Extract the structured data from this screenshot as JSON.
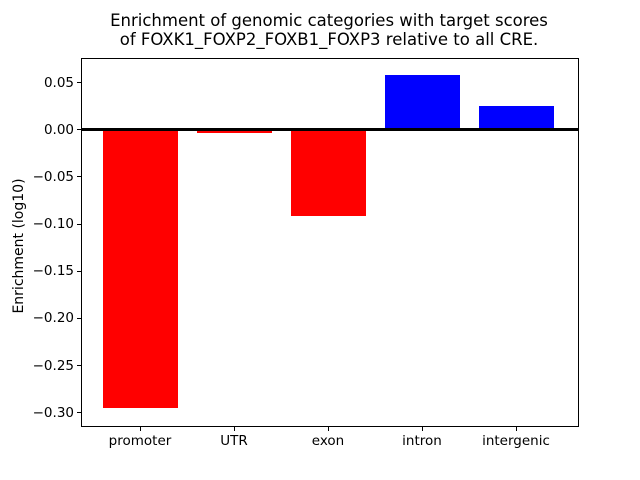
{
  "figure": {
    "title_lines": [
      "Enrichment of genomic categories with target scores",
      "of FOXK1_FOXP2_FOXB1_FOXP3 relative to all CRE."
    ],
    "ylabel": "Enrichment (log10)"
  },
  "chart_data": {
    "type": "bar",
    "title": "Enrichment of genomic categories with target scores\nof FOXK1_FOXP2_FOXB1_FOXP3 relative to all CRE.",
    "xlabel": "",
    "ylabel": "Enrichment (log10)",
    "categories": [
      "promoter",
      "UTR",
      "exon",
      "intron",
      "intergenic"
    ],
    "values": [
      -0.295,
      -0.003,
      -0.091,
      0.058,
      0.025
    ],
    "ylim": [
      -0.313,
      0.076
    ],
    "yticks": [
      0.05,
      0.0,
      -0.05,
      -0.1,
      -0.15,
      -0.2,
      -0.25,
      -0.3
    ],
    "ytick_labels": [
      "0.05",
      "0.00",
      "−0.05",
      "−0.10",
      "−0.15",
      "−0.20",
      "−0.25",
      "−0.30"
    ],
    "positive_color": "#0000ff",
    "negative_color": "#ff0000",
    "zero_line": true,
    "grid": false,
    "legend": false,
    "background_color": "#ffffff",
    "text_color": "#000000"
  }
}
